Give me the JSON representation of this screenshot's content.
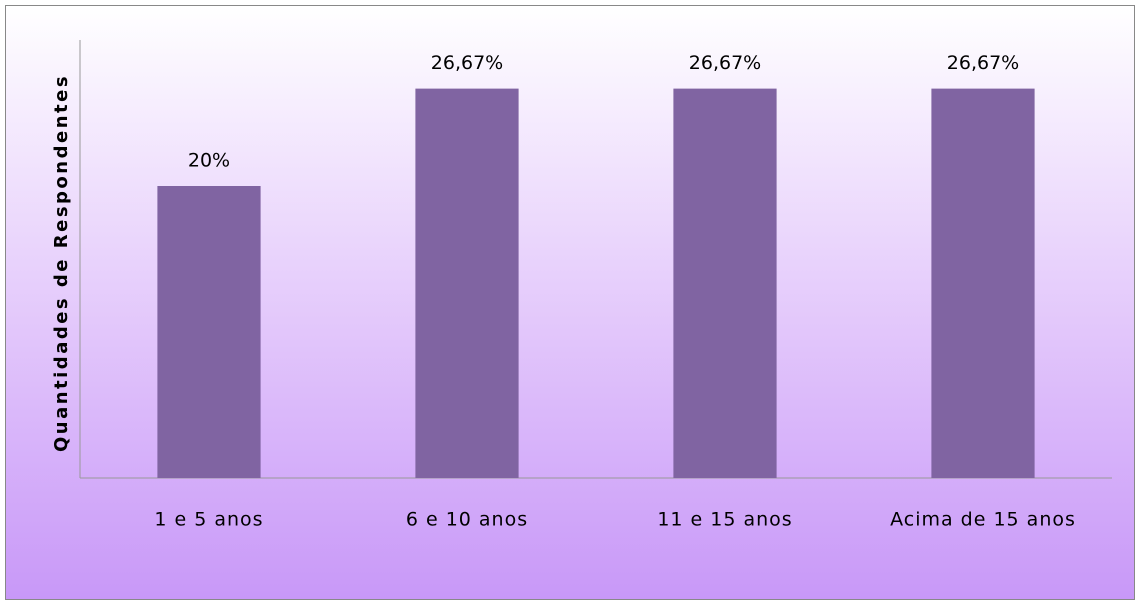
{
  "chart_data": {
    "type": "bar",
    "ylabel": "Quantidades de Respondentes",
    "categories": [
      "1 e 5 anos",
      "6 e 10 anos",
      "11 e 15 anos",
      "Acima de 15 anos"
    ],
    "values": [
      20,
      26.67,
      26.67,
      26.67
    ],
    "value_labels": [
      "20%",
      "26,67%",
      "26,67%",
      "26,67%"
    ],
    "color": "#8064a2",
    "ylim": [
      0,
      30
    ]
  }
}
